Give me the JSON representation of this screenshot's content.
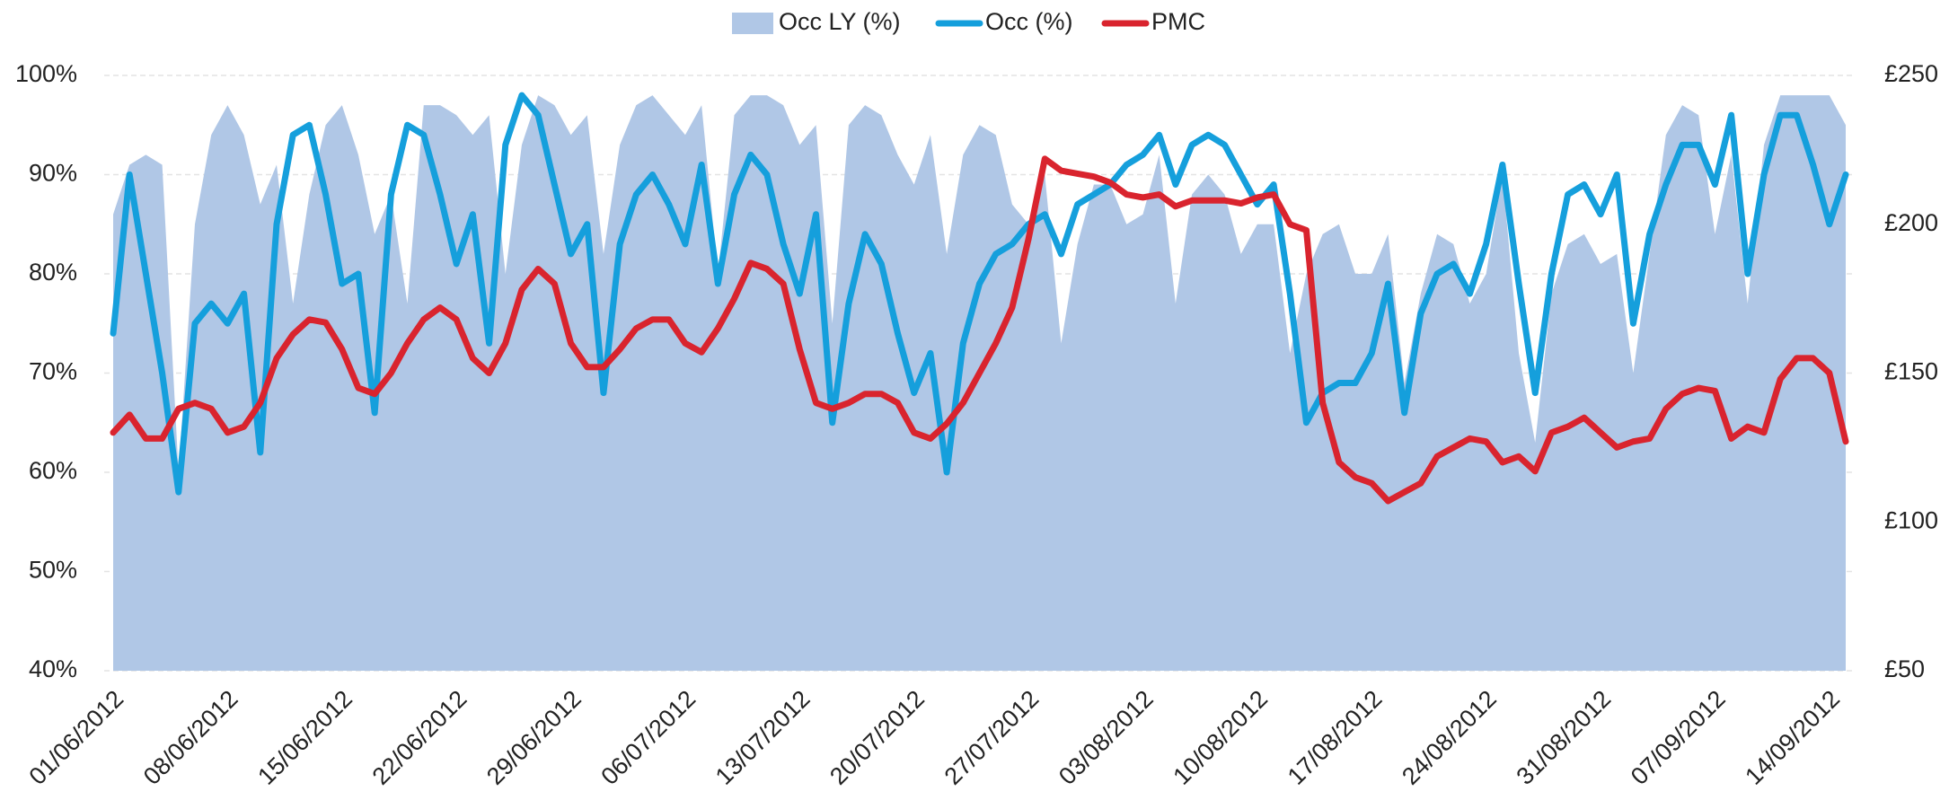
{
  "chart_data": {
    "type": "line",
    "categories": [
      "01/06/2012",
      null,
      null,
      null,
      null,
      null,
      null,
      "08/06/2012",
      null,
      null,
      null,
      null,
      null,
      null,
      "15/06/2012",
      null,
      null,
      null,
      null,
      null,
      null,
      "22/06/2012",
      null,
      null,
      null,
      null,
      null,
      null,
      "29/06/2012",
      null,
      null,
      null,
      null,
      null,
      null,
      "06/07/2012",
      null,
      null,
      null,
      null,
      null,
      null,
      "13/07/2012",
      null,
      null,
      null,
      null,
      null,
      null,
      "20/07/2012",
      null,
      null,
      null,
      null,
      null,
      null,
      "27/07/2012",
      null,
      null,
      null,
      null,
      null,
      null,
      "03/08/2012",
      null,
      null,
      null,
      null,
      null,
      null,
      "10/08/2012",
      null,
      null,
      null,
      null,
      null,
      null,
      "17/08/2012",
      null,
      null,
      null,
      null,
      null,
      null,
      "24/08/2012",
      null,
      null,
      null,
      null,
      null,
      null,
      "31/08/2012",
      null,
      null,
      null,
      null,
      null,
      null,
      "07/09/2012",
      null,
      null,
      null,
      null,
      null,
      null,
      "14/09/2012",
      null
    ],
    "series": [
      {
        "name": "Occ LY (%)",
        "kind": "area",
        "color": "#b0c7e6",
        "values": [
          86,
          91,
          92,
          91,
          60,
          85,
          94,
          97,
          94,
          87,
          91,
          77,
          88,
          95,
          97,
          92,
          84,
          88,
          77,
          97,
          97,
          96,
          94,
          96,
          80,
          93,
          98,
          97,
          94,
          96,
          82,
          93,
          97,
          98,
          96,
          94,
          97,
          80,
          96,
          98,
          98,
          97,
          93,
          95,
          75,
          95,
          97,
          96,
          92,
          89,
          94,
          82,
          92,
          95,
          94,
          87,
          85,
          90,
          73,
          83,
          89,
          89,
          85,
          86,
          92,
          77,
          88,
          90,
          88,
          82,
          85,
          85,
          72,
          80,
          84,
          85,
          80,
          80,
          84,
          69,
          78,
          84,
          83,
          77,
          80,
          90,
          72,
          63,
          78,
          83,
          84,
          81,
          82,
          70,
          82,
          94,
          97,
          96,
          84,
          92,
          77,
          93,
          98,
          98,
          98,
          98,
          95
        ]
      },
      {
        "name": "Occ (%)",
        "kind": "line",
        "color": "#159fdc",
        "values": [
          74,
          90,
          80,
          70,
          58,
          75,
          77,
          75,
          78,
          62,
          85,
          94,
          95,
          88,
          79,
          80,
          66,
          88,
          95,
          94,
          88,
          81,
          86,
          73,
          93,
          98,
          96,
          89,
          82,
          85,
          68,
          83,
          88,
          90,
          87,
          83,
          91,
          79,
          88,
          92,
          90,
          83,
          78,
          86,
          65,
          77,
          84,
          81,
          74,
          68,
          72,
          60,
          73,
          79,
          82,
          83,
          85,
          86,
          82,
          87,
          88,
          89,
          91,
          92,
          94,
          89,
          93,
          94,
          93,
          90,
          87,
          89,
          78,
          65,
          68,
          69,
          69,
          72,
          79,
          66,
          76,
          80,
          81,
          78,
          83,
          91,
          79,
          68,
          80,
          88,
          89,
          86,
          90,
          75,
          84,
          89,
          93,
          93,
          89,
          96,
          80,
          90,
          96,
          96,
          91,
          85,
          90
        ]
      },
      {
        "name": "PMC",
        "kind": "line",
        "color": "#d9242e",
        "axis": "y2",
        "values": [
          130,
          136,
          128,
          128,
          138,
          140,
          138,
          130,
          132,
          140,
          155,
          163,
          168,
          167,
          158,
          145,
          143,
          150,
          160,
          168,
          172,
          168,
          155,
          150,
          160,
          178,
          185,
          180,
          160,
          152,
          152,
          158,
          165,
          168,
          168,
          160,
          157,
          165,
          175,
          187,
          185,
          180,
          158,
          140,
          138,
          140,
          143,
          143,
          140,
          130,
          128,
          133,
          140,
          150,
          160,
          172,
          195,
          222,
          218,
          217,
          216,
          214,
          210,
          209,
          210,
          206,
          208,
          208,
          208,
          207,
          209,
          210,
          200,
          198,
          140,
          120,
          115,
          113,
          107,
          110,
          113,
          122,
          125,
          128,
          127,
          120,
          122,
          117,
          130,
          132,
          135,
          130,
          125,
          127,
          128,
          138,
          143,
          145,
          144,
          128,
          132,
          130,
          148,
          155,
          155,
          150,
          127
        ]
      }
    ],
    "ylim": [
      40,
      100
    ],
    "yticks": [
      {
        "value": 40,
        "label": "40%"
      },
      {
        "value": 50,
        "label": "50%"
      },
      {
        "value": 60,
        "label": "60%"
      },
      {
        "value": 70,
        "label": "70%"
      },
      {
        "value": 80,
        "label": "80%"
      },
      {
        "value": 90,
        "label": "90%"
      },
      {
        "value": 100,
        "label": "100%"
      }
    ],
    "y2lim": [
      50,
      250
    ],
    "y2ticks": [
      {
        "value": 50,
        "label": "£50"
      },
      {
        "value": 100,
        "label": "£100"
      },
      {
        "value": 150,
        "label": "£150"
      },
      {
        "value": 200,
        "label": "£200"
      },
      {
        "value": 250,
        "label": "£250"
      }
    ],
    "grid": true,
    "legend": "top"
  }
}
